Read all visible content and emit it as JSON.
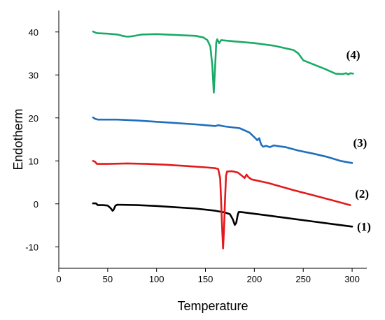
{
  "chart_data": {
    "type": "line",
    "xlabel": "Temperature",
    "ylabel": "Endotherm",
    "xlim": [
      0,
      315
    ],
    "ylim": [
      -15,
      45
    ],
    "xticks": [
      0,
      50,
      100,
      150,
      200,
      250,
      300
    ],
    "yticks": [
      -10,
      0,
      10,
      20,
      30,
      40
    ],
    "grid": false,
    "series": [
      {
        "name": "(1)",
        "color": "#000000",
        "points": [
          [
            35,
            0.1
          ],
          [
            38,
            0.1
          ],
          [
            40,
            -0.3
          ],
          [
            45,
            -0.3
          ],
          [
            50,
            -0.4
          ],
          [
            53,
            -1.0
          ],
          [
            55,
            -1.6
          ],
          [
            56,
            -1.4
          ],
          [
            58,
            -0.4
          ],
          [
            60,
            -0.2
          ],
          [
            80,
            -0.3
          ],
          [
            100,
            -0.5
          ],
          [
            120,
            -0.8
          ],
          [
            140,
            -1.1
          ],
          [
            160,
            -1.6
          ],
          [
            170,
            -2.0
          ],
          [
            175,
            -2.4
          ],
          [
            178,
            -3.6
          ],
          [
            180,
            -4.9
          ],
          [
            181.5,
            -4.4
          ],
          [
            183,
            -2.6
          ],
          [
            184,
            -1.9
          ],
          [
            186,
            -1.9
          ],
          [
            200,
            -2.3
          ],
          [
            230,
            -3.2
          ],
          [
            260,
            -4.1
          ],
          [
            280,
            -4.7
          ],
          [
            300,
            -5.3
          ]
        ]
      },
      {
        "name": "(2)",
        "color": "#e31a1c",
        "points": [
          [
            35,
            10.0
          ],
          [
            37,
            9.8
          ],
          [
            39,
            9.3
          ],
          [
            50,
            9.3
          ],
          [
            70,
            9.4
          ],
          [
            90,
            9.3
          ],
          [
            110,
            9.1
          ],
          [
            130,
            8.8
          ],
          [
            150,
            8.5
          ],
          [
            160,
            8.3
          ],
          [
            163,
            8.1
          ],
          [
            165,
            6.0
          ],
          [
            166,
            0.5
          ],
          [
            167,
            -5.5
          ],
          [
            168,
            -10.4
          ],
          [
            169,
            -5.5
          ],
          [
            170,
            1.0
          ],
          [
            171,
            6.5
          ],
          [
            172,
            7.5
          ],
          [
            177,
            7.6
          ],
          [
            183,
            7.3
          ],
          [
            187,
            6.6
          ],
          [
            190,
            6.0
          ],
          [
            192,
            6.8
          ],
          [
            194,
            6.2
          ],
          [
            197,
            5.7
          ],
          [
            215,
            4.8
          ],
          [
            240,
            3.2
          ],
          [
            260,
            2.0
          ],
          [
            280,
            0.8
          ],
          [
            298,
            -0.3
          ]
        ]
      },
      {
        "name": "(3)",
        "color": "#1f6fbf",
        "points": [
          [
            35,
            20.1
          ],
          [
            37,
            19.8
          ],
          [
            40,
            19.6
          ],
          [
            60,
            19.6
          ],
          [
            80,
            19.4
          ],
          [
            100,
            19.1
          ],
          [
            120,
            18.8
          ],
          [
            140,
            18.5
          ],
          [
            150,
            18.3
          ],
          [
            160,
            18.1
          ],
          [
            163,
            18.3
          ],
          [
            170,
            18.0
          ],
          [
            185,
            17.6
          ],
          [
            195,
            16.6
          ],
          [
            200,
            15.5
          ],
          [
            203,
            14.8
          ],
          [
            205,
            15.3
          ],
          [
            207,
            13.8
          ],
          [
            209,
            13.3
          ],
          [
            212,
            13.5
          ],
          [
            216,
            13.2
          ],
          [
            220,
            13.6
          ],
          [
            225,
            13.4
          ],
          [
            232,
            13.2
          ],
          [
            245,
            12.4
          ],
          [
            260,
            11.7
          ],
          [
            275,
            10.9
          ],
          [
            288,
            10.0
          ],
          [
            300,
            9.5
          ]
        ]
      },
      {
        "name": "(4)",
        "color": "#1aaa68",
        "points": [
          [
            35,
            40.1
          ],
          [
            38,
            39.8
          ],
          [
            40,
            39.7
          ],
          [
            50,
            39.6
          ],
          [
            60,
            39.4
          ],
          [
            65,
            39.1
          ],
          [
            70,
            38.9
          ],
          [
            75,
            39.0
          ],
          [
            85,
            39.4
          ],
          [
            100,
            39.5
          ],
          [
            120,
            39.3
          ],
          [
            140,
            39.1
          ],
          [
            148,
            38.7
          ],
          [
            152,
            38.1
          ],
          [
            155,
            36.6
          ],
          [
            157,
            32.2
          ],
          [
            158.5,
            25.9
          ],
          [
            160,
            32.5
          ],
          [
            161,
            37.5
          ],
          [
            162,
            38.3
          ],
          [
            164,
            37.4
          ],
          [
            166,
            38.1
          ],
          [
            180,
            37.8
          ],
          [
            200,
            37.4
          ],
          [
            220,
            36.8
          ],
          [
            240,
            35.8
          ],
          [
            245,
            35.0
          ],
          [
            250,
            33.4
          ],
          [
            260,
            32.5
          ],
          [
            272,
            31.4
          ],
          [
            283,
            30.3
          ],
          [
            290,
            30.2
          ],
          [
            294,
            30.4
          ],
          [
            296,
            30.1
          ],
          [
            298,
            30.4
          ],
          [
            301,
            30.3
          ]
        ]
      }
    ],
    "labels": [
      {
        "text": "(1)",
        "x": 305,
        "y": -6.2
      },
      {
        "text": "(2)",
        "x": 303,
        "y": 1.4
      },
      {
        "text": "(3)",
        "x": 301,
        "y": 13.3
      },
      {
        "text": "(4)",
        "x": 294,
        "y": 33.8
      }
    ]
  }
}
